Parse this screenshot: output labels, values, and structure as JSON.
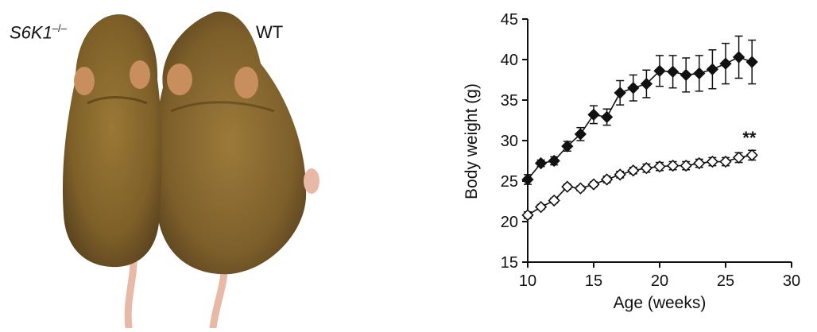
{
  "photo": {
    "label_knockout": "S6K1",
    "label_knockout_sup": "–/–",
    "label_wildtype": "WT"
  },
  "colors": {
    "fur": "#8a6a2e",
    "fur_dark": "#5e4620",
    "ear": "#c98e5e",
    "tail": "#e8b9a6",
    "marker": "#111111"
  },
  "chart_data": {
    "type": "line",
    "title": "",
    "xlabel": "Age (weeks)",
    "ylabel": "Body weight (g)",
    "xlim": [
      10,
      30
    ],
    "ylim": [
      15,
      45
    ],
    "xticks": [
      10,
      15,
      20,
      25,
      30
    ],
    "yticks": [
      15,
      20,
      25,
      30,
      35,
      40,
      45
    ],
    "grid": false,
    "annotation": "**",
    "x": [
      10,
      11,
      12,
      13,
      14,
      15,
      16,
      17,
      18,
      19,
      20,
      21,
      22,
      23,
      24,
      25,
      26,
      27
    ],
    "series": [
      {
        "name": "WT",
        "marker": "filled-diamond",
        "values": [
          25.2,
          27.2,
          27.5,
          29.3,
          30.8,
          33.2,
          32.9,
          35.9,
          36.5,
          37.0,
          38.6,
          38.5,
          38.1,
          38.3,
          38.8,
          39.5,
          40.3,
          39.7
        ],
        "errors": [
          0.6,
          0.4,
          0.5,
          0.6,
          0.8,
          1.1,
          1.0,
          1.5,
          1.6,
          1.7,
          1.9,
          2.0,
          2.1,
          2.2,
          2.4,
          2.5,
          2.6,
          2.7
        ]
      },
      {
        "name": "S6K1-/-",
        "marker": "open-diamond",
        "values": [
          20.8,
          21.8,
          22.6,
          24.3,
          24.1,
          24.6,
          25.2,
          25.8,
          26.3,
          26.6,
          26.8,
          26.9,
          26.9,
          27.2,
          27.4,
          27.4,
          27.9,
          28.2
        ],
        "errors": [
          0.4,
          0.3,
          0.3,
          0.3,
          0.3,
          0.3,
          0.4,
          0.4,
          0.4,
          0.5,
          0.5,
          0.5,
          0.5,
          0.5,
          0.5,
          0.5,
          0.6,
          0.6
        ]
      }
    ]
  }
}
